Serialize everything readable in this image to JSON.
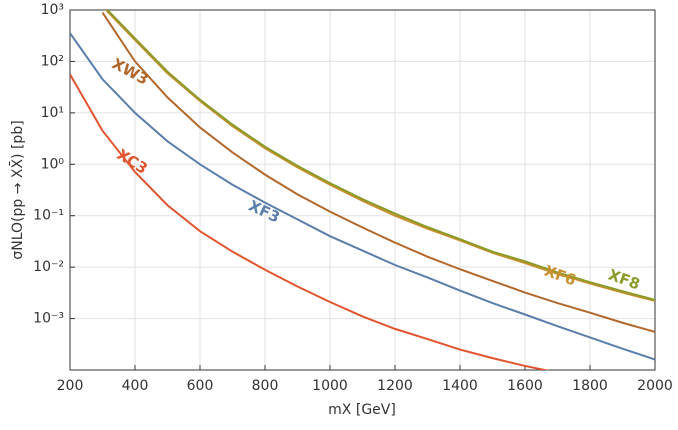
{
  "chart_data": {
    "type": "line",
    "x_label": "mX [GeV]",
    "y_label": "σNLO(pp → XX̄) [pb]",
    "x": [
      200,
      300,
      400,
      500,
      600,
      700,
      800,
      900,
      1000,
      1100,
      1200,
      1300,
      1400,
      1500,
      1600,
      1700,
      1800,
      1900,
      2000
    ],
    "series": [
      {
        "name": "XW3",
        "color": "#b2672b",
        "values": [
          null,
          890,
          100,
          20,
          5.2,
          1.7,
          0.63,
          0.26,
          0.12,
          0.059,
          0.03,
          0.016,
          0.0091,
          0.0054,
          0.0032,
          0.002,
          0.0013,
          0.00083,
          0.00055
        ]
      },
      {
        "name": "XC3",
        "color": "#e0552f",
        "values": [
          56,
          4.5,
          0.71,
          0.16,
          0.05,
          0.02,
          0.0089,
          0.0042,
          0.0021,
          0.0011,
          0.00063,
          0.0004,
          0.00025,
          0.00017,
          0.00012,
          8.9e-05,
          null,
          null,
          null
        ]
      },
      {
        "name": "XF3",
        "color": "#5b7eab",
        "values": [
          355,
          45,
          10,
          2.8,
          1.0,
          0.4,
          0.18,
          0.085,
          0.04,
          0.021,
          0.011,
          0.0063,
          0.0035,
          0.002,
          0.0012,
          0.00071,
          0.00043,
          0.00026,
          0.00016
        ]
      },
      {
        "name": "XF6",
        "color": "#c9902f",
        "values": [
          null,
          1180,
          260,
          59,
          17,
          5.5,
          2.05,
          0.87,
          0.4,
          0.195,
          0.1,
          0.056,
          0.033,
          0.019,
          0.012,
          0.0074,
          0.0048,
          0.0032,
          0.0022
        ]
      },
      {
        "name": "XF8",
        "color": "#8c9a28",
        "values": [
          null,
          1260,
          280,
          63,
          18,
          5.9,
          2.2,
          0.93,
          0.43,
          0.21,
          0.11,
          0.06,
          0.035,
          0.02,
          0.013,
          0.0079,
          0.0051,
          0.0034,
          0.0023
        ]
      }
    ],
    "xlim": [
      200,
      2000
    ],
    "xticks": [
      200,
      400,
      600,
      800,
      1000,
      1200,
      1400,
      1600,
      1800,
      2000
    ],
    "ylim": [
      0.0001,
      1000
    ],
    "yticks": [
      {
        "value": 0.001,
        "label": "10⁻³"
      },
      {
        "value": 0.01,
        "label": "10⁻²"
      },
      {
        "value": 0.1,
        "label": "10⁻¹"
      },
      {
        "value": 1,
        "label": "10⁰"
      },
      {
        "value": 10,
        "label": "10¹"
      },
      {
        "value": 100,
        "label": "10²"
      },
      {
        "value": 1000,
        "label": "10³"
      }
    ],
    "y_scale": "log",
    "grid": true
  }
}
